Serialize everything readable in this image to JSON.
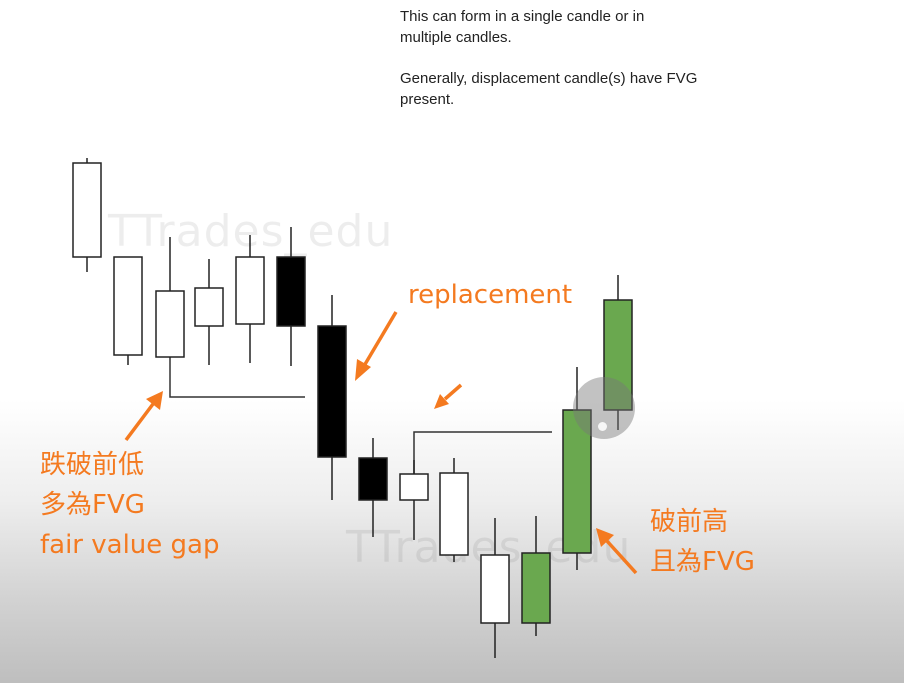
{
  "notes": {
    "line1": "This can form in a single candle or in",
    "line2": "multiple candles.",
    "line3": "Generally, displacement candle(s) have FVG",
    "line4": "present."
  },
  "watermark": "TTrades_edu",
  "annotations": {
    "replacement": "replacement",
    "left_line1": "跌破前低",
    "left_line2": "多為FVG",
    "left_line3": "fair value gap",
    "right_line1": "破前高",
    "right_line2": "且為FVG"
  },
  "colors": {
    "annotation": "#f47a20",
    "bullish_green": "#6aa84f",
    "bearish_black": "#000000",
    "hollow": "#ffffff"
  }
}
